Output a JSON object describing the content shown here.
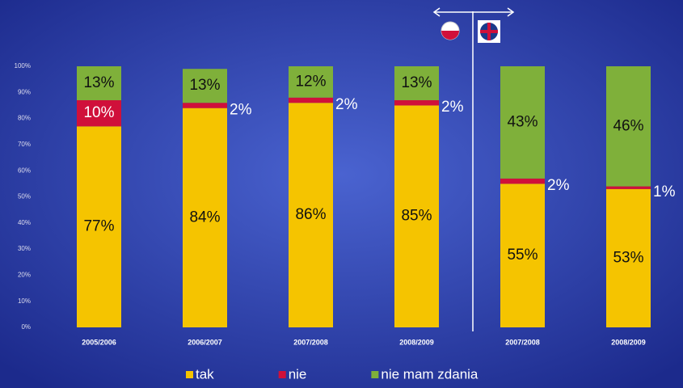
{
  "chart_data": {
    "type": "stacked_bar",
    "categories": [
      "2005/2006",
      "2006/2007",
      "2007/2008",
      "2008/2009",
      "2007/2008",
      "2008/2009"
    ],
    "series": [
      {
        "name": "tak",
        "color": "#f5c400",
        "values": [
          77,
          84,
          86,
          85,
          55,
          53
        ],
        "value_labels": [
          "77%",
          "84%",
          "86%",
          "85%",
          "55%",
          "53%"
        ]
      },
      {
        "name": "nie",
        "color": "#d0103a",
        "values": [
          10,
          2,
          2,
          2,
          2,
          1
        ],
        "value_labels": [
          "10%",
          "2%",
          "2%",
          "2%",
          "2%",
          "1%"
        ]
      },
      {
        "name": "nie mam zdania",
        "color": "#7fb03a",
        "values": [
          13,
          13,
          12,
          13,
          43,
          46
        ],
        "value_labels": [
          "13%",
          "13%",
          "12%",
          "13%",
          "43%",
          "46%"
        ]
      }
    ],
    "ylim": [
      0,
      100
    ],
    "yticks": [
      {
        "value": 0,
        "label": "0%"
      },
      {
        "value": 10,
        "label": "10%"
      },
      {
        "value": 20,
        "label": "20%"
      },
      {
        "value": 30,
        "label": "30%"
      },
      {
        "value": 40,
        "label": "40%"
      },
      {
        "value": 50,
        "label": "50%"
      },
      {
        "value": 60,
        "label": "60%"
      },
      {
        "value": 70,
        "label": "70%"
      },
      {
        "value": 80,
        "label": "80%"
      },
      {
        "value": 90,
        "label": "90%"
      },
      {
        "value": 100,
        "label": "100%"
      }
    ],
    "legend": "bottom"
  }
}
